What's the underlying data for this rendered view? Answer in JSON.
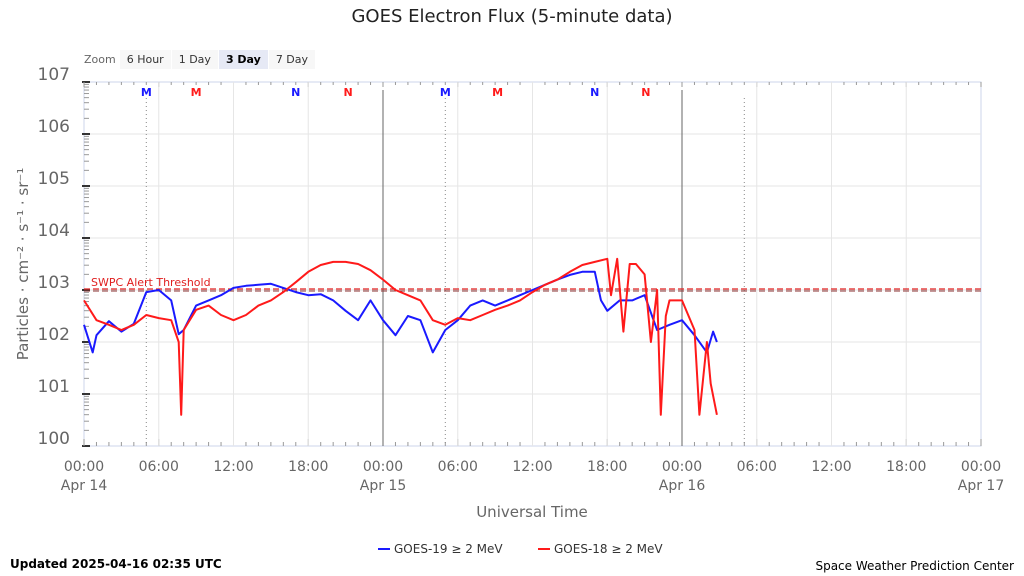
{
  "title": "GOES Electron Flux (5-minute data)",
  "zoom": {
    "label": "Zoom",
    "buttons": [
      "6 Hour",
      "1 Day",
      "3 Day",
      "7 Day"
    ],
    "selected": "3 Day"
  },
  "updated": "Updated 2025-04-16 02:35 UTC",
  "credit": "Space Weather Prediction Center",
  "chart_data": {
    "type": "line",
    "title": "GOES Electron Flux (5-minute data)",
    "xlabel": "Universal Time",
    "ylabel": "Particles · cm⁻² · s⁻¹ · sr⁻¹",
    "yscale": "log",
    "ylim_exp": [
      0,
      7
    ],
    "y_ticks": [
      {
        "base": "10",
        "exp": "7"
      },
      {
        "base": "10",
        "exp": "6"
      },
      {
        "base": "10",
        "exp": "5"
      },
      {
        "base": "10",
        "exp": "4"
      },
      {
        "base": "10",
        "exp": "3"
      },
      {
        "base": "10",
        "exp": "2"
      },
      {
        "base": "10",
        "exp": "1"
      },
      {
        "base": "10",
        "exp": "0"
      }
    ],
    "x_range_hours": [
      0,
      72
    ],
    "x_ticks": [
      {
        "t": "00:00",
        "d": "Apr 14"
      },
      {
        "t": "06:00",
        "d": ""
      },
      {
        "t": "12:00",
        "d": ""
      },
      {
        "t": "18:00",
        "d": ""
      },
      {
        "t": "00:00",
        "d": "Apr 15"
      },
      {
        "t": "06:00",
        "d": ""
      },
      {
        "t": "12:00",
        "d": ""
      },
      {
        "t": "18:00",
        "d": ""
      },
      {
        "t": "00:00",
        "d": "Apr 16"
      },
      {
        "t": "06:00",
        "d": ""
      },
      {
        "t": "12:00",
        "d": ""
      },
      {
        "t": "18:00",
        "d": ""
      },
      {
        "t": "00:00",
        "d": "Apr 17"
      }
    ],
    "threshold": {
      "label": "SWPC Alert Threshold",
      "value_exp": 3,
      "color": "#e02020"
    },
    "markers": [
      {
        "label": "M",
        "hour": 5,
        "color": "#1a1aff"
      },
      {
        "label": "M",
        "hour": 9,
        "color": "#ff1a1a"
      },
      {
        "label": "N",
        "hour": 17,
        "color": "#1a1aff"
      },
      {
        "label": "N",
        "hour": 21.2,
        "color": "#ff1a1a"
      },
      {
        "label": "M",
        "hour": 29,
        "color": "#1a1aff"
      },
      {
        "label": "M",
        "hour": 33.2,
        "color": "#ff1a1a"
      },
      {
        "label": "N",
        "hour": 41,
        "color": "#1a1aff"
      },
      {
        "label": "N",
        "hour": 45.1,
        "color": "#ff1a1a"
      }
    ],
    "midnight_lines": [
      24,
      48
    ],
    "dotted_lines": [
      5,
      29,
      53
    ],
    "series": [
      {
        "name": "GOES-19 ≥ 2 MeV",
        "color": "#1a1aff",
        "hours": [
          0,
          0.7,
          1,
          2,
          3,
          4,
          5,
          6,
          7,
          7.6,
          8,
          9,
          10,
          11,
          12,
          13,
          14,
          15,
          16,
          17,
          18,
          19,
          20,
          21,
          22,
          23,
          24,
          25,
          26,
          27,
          28,
          29,
          30,
          31,
          32,
          33,
          34,
          35,
          36,
          37,
          38,
          39,
          40,
          41,
          41.5,
          42,
          43,
          44,
          45,
          46,
          47,
          48,
          49,
          50,
          50.5,
          50.8
        ],
        "log_values": [
          2.33,
          1.8,
          2.13,
          2.4,
          2.2,
          2.35,
          2.96,
          3.0,
          2.8,
          2.15,
          2.23,
          2.7,
          2.8,
          2.9,
          3.04,
          3.08,
          3.1,
          3.12,
          3.04,
          2.96,
          2.9,
          2.92,
          2.8,
          2.6,
          2.42,
          2.8,
          2.42,
          2.13,
          2.5,
          2.42,
          1.8,
          2.23,
          2.42,
          2.7,
          2.8,
          2.7,
          2.8,
          2.9,
          3.0,
          3.1,
          3.2,
          3.29,
          3.35,
          3.35,
          2.8,
          2.6,
          2.8,
          2.8,
          2.9,
          2.23,
          2.33,
          2.42,
          2.13,
          1.8,
          2.2,
          2.0
        ]
      },
      {
        "name": "GOES-18 ≥ 2 MeV",
        "color": "#ff1a1a",
        "hours": [
          0,
          1,
          2,
          3,
          4,
          5,
          6,
          7,
          7.6,
          7.8,
          8,
          9,
          10,
          11,
          12,
          13,
          14,
          15,
          16,
          17,
          18,
          19,
          20,
          21,
          22,
          23,
          24,
          25,
          26,
          27,
          28,
          29,
          30,
          31,
          32,
          33,
          34,
          35,
          36,
          37,
          38,
          39,
          40,
          41,
          42,
          42.3,
          42.8,
          43.3,
          43.8,
          44.3,
          45,
          45.5,
          46,
          46.3,
          46.7,
          47,
          48,
          49,
          49.4,
          50,
          50.3,
          50.8
        ],
        "log_values": [
          2.8,
          2.42,
          2.33,
          2.23,
          2.33,
          2.52,
          2.46,
          2.42,
          2.0,
          0.6,
          2.23,
          2.62,
          2.7,
          2.52,
          2.42,
          2.52,
          2.7,
          2.8,
          2.96,
          3.15,
          3.35,
          3.48,
          3.54,
          3.54,
          3.5,
          3.38,
          3.2,
          3.0,
          2.9,
          2.8,
          2.42,
          2.33,
          2.46,
          2.42,
          2.52,
          2.62,
          2.7,
          2.8,
          2.96,
          3.1,
          3.2,
          3.35,
          3.48,
          3.54,
          3.6,
          2.9,
          3.6,
          2.2,
          3.5,
          3.5,
          3.3,
          2.0,
          3.0,
          0.6,
          2.5,
          2.8,
          2.8,
          2.23,
          0.6,
          2.0,
          1.2,
          0.6
        ]
      }
    ]
  }
}
